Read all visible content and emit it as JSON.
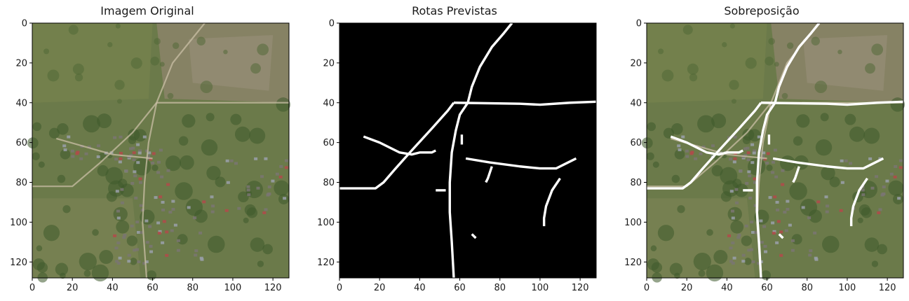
{
  "colors": {
    "road_white": "#ffffff",
    "mask_black": "#000000",
    "field_green": "#6b7a4a",
    "field_brown": "#8b8468",
    "forest_green": "#3e5a2c",
    "village_gray": "#7a7672"
  },
  "chart_data": [
    {
      "type": "image",
      "title": "Imagem Original",
      "xlim": [
        0,
        128
      ],
      "ylim": [
        128,
        0
      ],
      "x_ticks": [
        0,
        20,
        40,
        60,
        80,
        100,
        120
      ],
      "y_ticks": [
        0,
        20,
        40,
        60,
        80,
        100,
        120
      ]
    },
    {
      "type": "image",
      "title": "Rotas Previstas",
      "xlim": [
        0,
        128
      ],
      "ylim": [
        128,
        0
      ],
      "x_ticks": [
        0,
        20,
        40,
        60,
        80,
        100,
        120
      ],
      "y_ticks": [
        0,
        20,
        40,
        60,
        80,
        100,
        120
      ],
      "roads": [
        [
          [
            86,
            0
          ],
          [
            82,
            5
          ],
          [
            76,
            12
          ],
          [
            70,
            22
          ],
          [
            66,
            32
          ],
          [
            64,
            40
          ],
          [
            60,
            46
          ],
          [
            58,
            54
          ],
          [
            56,
            65
          ],
          [
            55,
            80
          ],
          [
            55,
            95
          ],
          [
            56,
            110
          ],
          [
            57,
            128
          ]
        ],
        [
          [
            0,
            83
          ],
          [
            18,
            83
          ],
          [
            22,
            80
          ],
          [
            28,
            73
          ],
          [
            36,
            64
          ],
          [
            46,
            53
          ],
          [
            54,
            44
          ],
          [
            57,
            40
          ]
        ],
        [
          [
            57,
            40
          ],
          [
            90,
            40.5
          ],
          [
            100,
            41
          ],
          [
            115,
            40
          ],
          [
            128,
            39.5
          ]
        ],
        [
          [
            12,
            57
          ],
          [
            20,
            60
          ],
          [
            30,
            65
          ],
          [
            36,
            66
          ],
          [
            40,
            65
          ],
          [
            46,
            65
          ],
          [
            48,
            64
          ]
        ],
        [
          [
            63,
            68
          ],
          [
            75,
            70
          ],
          [
            90,
            72
          ],
          [
            100,
            73
          ],
          [
            108,
            73
          ],
          [
            114,
            70
          ],
          [
            118,
            68
          ]
        ],
        [
          [
            110,
            78
          ],
          [
            106,
            84
          ],
          [
            103,
            92
          ],
          [
            102,
            98
          ],
          [
            102,
            102
          ]
        ],
        [
          [
            76,
            72
          ],
          [
            74,
            78
          ],
          [
            73,
            80
          ]
        ],
        [
          [
            48,
            84
          ],
          [
            53,
            84
          ]
        ],
        [
          [
            61,
            56
          ],
          [
            61,
            61
          ]
        ],
        [
          [
            66,
            106
          ],
          [
            68,
            108
          ]
        ]
      ]
    },
    {
      "type": "image",
      "title": "Sobreposição",
      "xlim": [
        0,
        128
      ],
      "ylim": [
        128,
        0
      ],
      "x_ticks": [
        0,
        20,
        40,
        60,
        80,
        100,
        120
      ],
      "y_ticks": [
        0,
        20,
        40,
        60,
        80,
        100,
        120
      ]
    }
  ]
}
